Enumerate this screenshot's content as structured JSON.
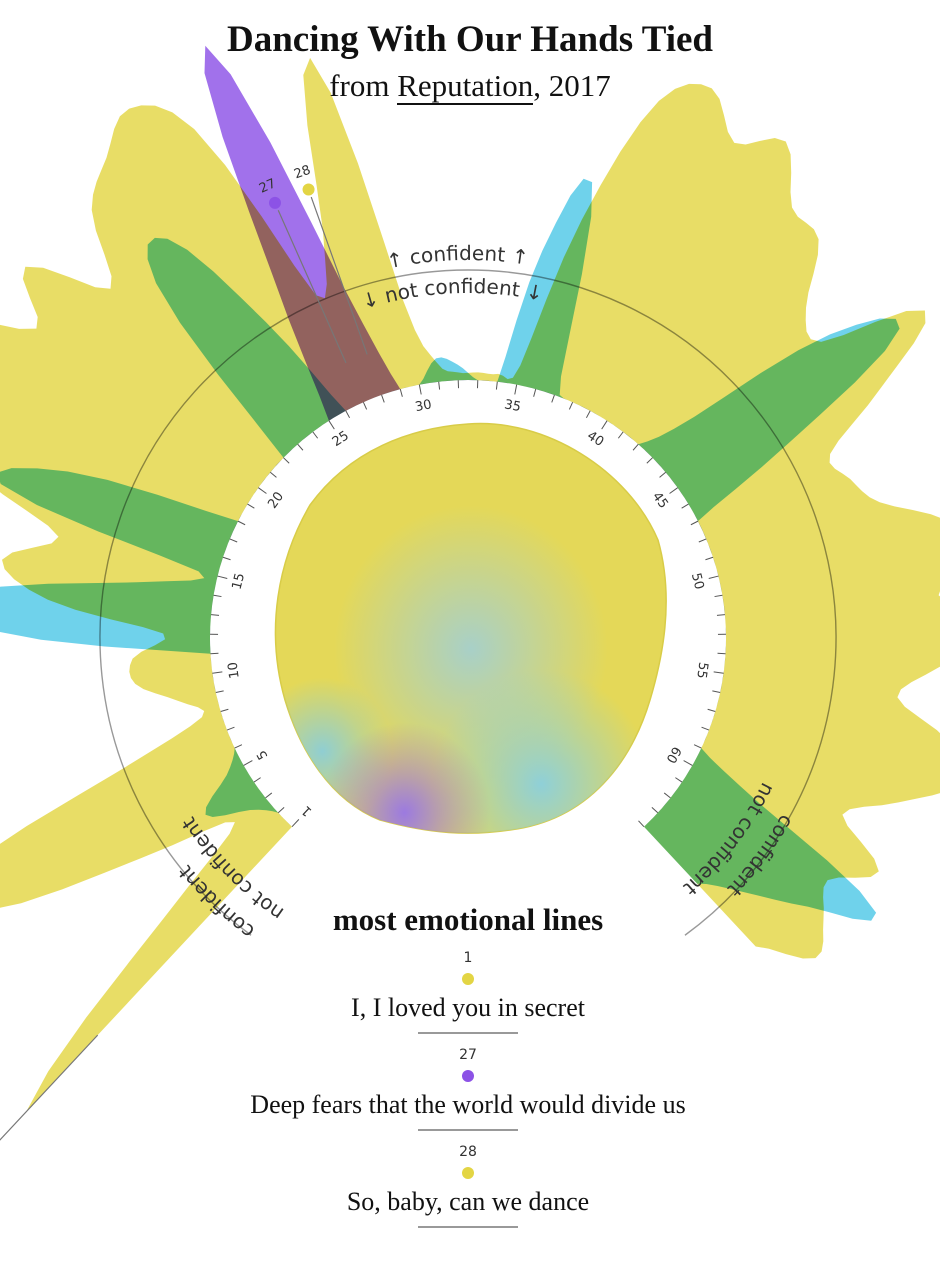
{
  "header": {
    "title": "Dancing With Our Hands Tied",
    "subtitle_prefix": "from ",
    "album": "Reputation",
    "subtitle_suffix": ", 2017"
  },
  "chart_data": {
    "type": "radial-area",
    "axis_labels": {
      "top_outer": "↑ confident ↑",
      "top_inner": "↓ not confident ↓",
      "side_outer": "confident",
      "side_inner": "not confident"
    },
    "tick_labels": [
      "1",
      "5",
      "10",
      "15",
      "20",
      "25",
      "30",
      "35",
      "40",
      "45",
      "50",
      "55",
      "60"
    ],
    "line_count": 64,
    "colors": {
      "yellow": "#e3d544",
      "blue": "#4fc8e6",
      "purple": "#8c52e6",
      "overlap_green": "#4aa84a",
      "overlap_brown": "#7d4540"
    },
    "series": [
      {
        "name": "yellow",
        "color": "#e3d544",
        "values": [
          1.0,
          0.4,
          0.1,
          0.35,
          0.75,
          0.8,
          0.3,
          0.05,
          0.1,
          0.2,
          0.2,
          0.12,
          0.42,
          0.55,
          0.42,
          0.65,
          0.85,
          0.74,
          0.9,
          0.7,
          0.82,
          0.62,
          0.8,
          0.88,
          0.95,
          0.82,
          0.3,
          0.45,
          0.88,
          0.22,
          0.05,
          0.02,
          0.02,
          0.02,
          0.05,
          0.45,
          0.8,
          0.88,
          0.78,
          0.85,
          0.72,
          0.7,
          0.55,
          0.52,
          0.78,
          0.58,
          0.38,
          0.4,
          0.45,
          0.6,
          0.65,
          0.55,
          0.7,
          0.55,
          0.45,
          0.6,
          0.65,
          0.52,
          0.4,
          0.55,
          0.45,
          0.5,
          0.55,
          0.42
        ]
      },
      {
        "name": "blue",
        "color": "#4fc8e6",
        "values": [
          0,
          0,
          0.05,
          0.15,
          0.05,
          0,
          0,
          0,
          0,
          0,
          0,
          0.55,
          0.62,
          0.2,
          0.05,
          0.6,
          0.45,
          0,
          0,
          0,
          0,
          0,
          0.55,
          0.62,
          0.3,
          0,
          0,
          0,
          0,
          0,
          0.06,
          0.04,
          0,
          0,
          0.35,
          0.55,
          0.05,
          0,
          0,
          0,
          0,
          0,
          0.15,
          0.55,
          0.7,
          0.3,
          0,
          0,
          0,
          0,
          0,
          0,
          0,
          0,
          0,
          0,
          0,
          0,
          0,
          0.2,
          0.6,
          0.45,
          0.3,
          0.2
        ]
      },
      {
        "name": "purple",
        "color": "#8c52e6",
        "values": [
          0,
          0,
          0,
          0,
          0,
          0,
          0,
          0,
          0,
          0,
          0,
          0,
          0,
          0,
          0,
          0,
          0,
          0,
          0,
          0,
          0,
          0,
          0,
          0,
          0,
          0.4,
          1.0,
          0.3,
          0,
          0,
          0,
          0,
          0,
          0,
          0,
          0,
          0,
          0,
          0,
          0,
          0,
          0,
          0,
          0,
          0,
          0,
          0,
          0,
          0,
          0,
          0,
          0,
          0,
          0,
          0,
          0,
          0,
          0,
          0,
          0,
          0,
          0,
          0,
          0
        ]
      }
    ],
    "highlight_markers": [
      {
        "line": 1,
        "color": "#e3d544"
      },
      {
        "line": 27,
        "color": "#8c52e6"
      },
      {
        "line": 28,
        "color": "#e3d544"
      }
    ]
  },
  "emotional_lines": {
    "title": "most emotional lines",
    "items": [
      {
        "number": "1",
        "color": "#e3d544",
        "text": "I, I loved you in secret"
      },
      {
        "number": "27",
        "color": "#8c52e6",
        "text": "Deep fears that the world would divide us"
      },
      {
        "number": "28",
        "color": "#e3d544",
        "text": "So, baby, can we dance"
      }
    ]
  }
}
